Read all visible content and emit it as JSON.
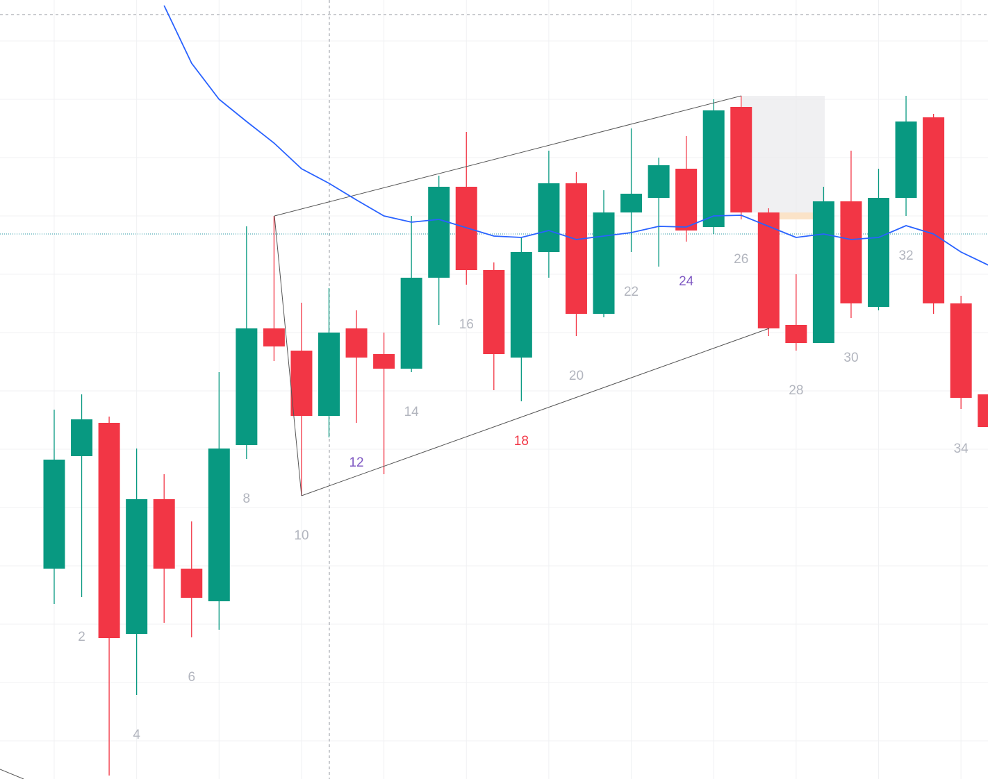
{
  "chart_data": {
    "type": "candlestick",
    "categories": [
      null,
      "2",
      null,
      "4",
      null,
      "6",
      null,
      "8",
      null,
      "10",
      null,
      "12",
      null,
      "14",
      null,
      "16",
      null,
      "18",
      null,
      "20",
      null,
      "22",
      null,
      "24",
      null,
      "26",
      null,
      "28",
      null,
      "30",
      null,
      "32",
      null,
      "34",
      null
    ],
    "label_colors": [
      "#b2b5be",
      "#b2b5be",
      "#b2b5be",
      "#b2b5be",
      "#b2b5be",
      "#b2b5be",
      "#b2b5be",
      "#b2b5be",
      "#b2b5be",
      "#b2b5be",
      "#b2b5be",
      "#7e57c2",
      "#b2b5be",
      "#b2b5be",
      "#b2b5be",
      "#b2b5be",
      "#b2b5be",
      "#f23645",
      "#b2b5be",
      "#b2b5be",
      "#b2b5be",
      "#b2b5be",
      "#b2b5be",
      "#7e57c2",
      "#b2b5be",
      "#b2b5be",
      "#b2b5be",
      "#b2b5be",
      "#b2b5be",
      "#b2b5be",
      "#b2b5be",
      "#b2b5be",
      "#b2b5be",
      "#b2b5be",
      "#b2b5be"
    ],
    "open": [
      30.3,
      46.5,
      51.3,
      20.9,
      40.3,
      30.3,
      25.6,
      48.1,
      64.9,
      61.7,
      52.3,
      64.9,
      61.2,
      59.1,
      72.2,
      85.3,
      73.3,
      60.7,
      75.9,
      85.8,
      67.0,
      81.6,
      83.7,
      87.9,
      79.5,
      96.8,
      81.6,
      65.4,
      62.8,
      83.2,
      68.0,
      83.7,
      95.3,
      68.5,
      55.4
    ],
    "high": [
      53.2,
      55.4,
      52.2,
      47.6,
      43.9,
      37.1,
      58.6,
      79.6,
      81.1,
      68.6,
      70.7,
      67.5,
      64.3,
      81.1,
      86.9,
      93.2,
      74.4,
      78.0,
      90.5,
      87.4,
      84.8,
      93.7,
      89.5,
      92.6,
      97.9,
      98.4,
      82.2,
      72.7,
      85.3,
      90.5,
      87.9,
      98.4,
      95.8,
      69.6,
      55.4
    ],
    "low": [
      25.2,
      26.2,
      0.5,
      12.1,
      22.5,
      20.4,
      21.5,
      46.1,
      60.2,
      40.8,
      49.2,
      51.3,
      43.9,
      58.6,
      65.4,
      71.2,
      56.0,
      54.4,
      72.2,
      63.8,
      66.5,
      75.9,
      73.8,
      77.4,
      78.5,
      80.6,
      63.8,
      61.7,
      62.8,
      66.4,
      67.5,
      81.1,
      67.0,
      53.3,
      50.7
    ],
    "close": [
      46.0,
      51.8,
      20.3,
      40.3,
      30.3,
      26.1,
      47.6,
      64.9,
      62.3,
      52.3,
      64.3,
      60.7,
      59.1,
      72.2,
      85.3,
      73.3,
      61.2,
      75.9,
      85.8,
      67.0,
      81.6,
      84.3,
      88.4,
      79.0,
      96.3,
      81.6,
      64.9,
      62.8,
      83.2,
      68.5,
      83.7,
      94.7,
      68.5,
      54.9,
      50.7
    ],
    "up_color": "#089981",
    "down_color": "#f23645",
    "ma": {
      "color": "#2962ff",
      "values": [
        null,
        null,
        null,
        null,
        111.4,
        103.1,
        97.9,
        94.7,
        91.6,
        87.9,
        85.8,
        83.4,
        81.1,
        80.2,
        80.6,
        79.4,
        78.2,
        78.0,
        79.0,
        77.7,
        78.2,
        78.7,
        79.6,
        79.5,
        81.1,
        81.2,
        79.6,
        78.0,
        78.5,
        77.7,
        78.0,
        79.7,
        78.5,
        75.9,
        74.0
      ]
    },
    "ylim": [
      0,
      112.2
    ],
    "grid": true
  }
}
